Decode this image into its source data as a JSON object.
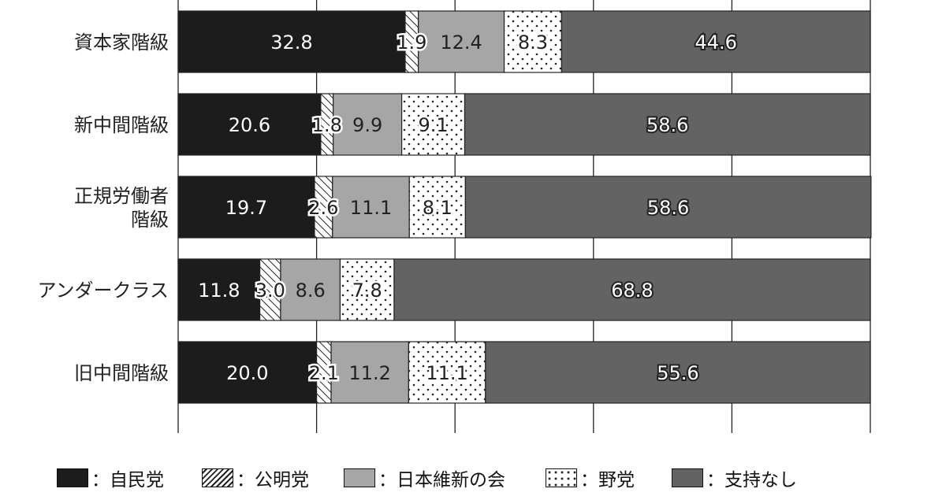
{
  "chart_data": {
    "type": "bar",
    "orientation": "horizontal",
    "stacked": true,
    "xlim": [
      0,
      100
    ],
    "grid": true,
    "legend_placement": "bottom",
    "categories": [
      "資本家階級",
      "新中間階級",
      "正規労働者階級",
      "アンダークラス",
      "旧中間階級"
    ],
    "category_lines": [
      [
        "資本家階級"
      ],
      [
        "新中間階級"
      ],
      [
        "正規労働者",
        "階級"
      ],
      [
        "アンダークラス"
      ],
      [
        "旧中間階級"
      ]
    ],
    "series": [
      {
        "name": "自民党",
        "values": [
          32.8,
          20.6,
          19.7,
          11.8,
          20.0
        ],
        "labels": [
          "32.8",
          "20.6",
          "19.7",
          "11.8",
          "20.0"
        ],
        "fill": "#1c1c1c",
        "pattern": "solid"
      },
      {
        "name": "公明党",
        "values": [
          1.9,
          1.8,
          2.6,
          3.0,
          2.1
        ],
        "labels": [
          "1.9",
          "1.8",
          "2.6",
          "3.0",
          "2.1"
        ],
        "fill": "#ffffff",
        "pattern": "hatch"
      },
      {
        "name": "日本維新の会",
        "values": [
          12.4,
          9.9,
          11.1,
          8.6,
          11.2
        ],
        "labels": [
          "12.4",
          "9.9",
          "11.1",
          "8.6",
          "11.2"
        ],
        "fill": "#a6a6a6",
        "pattern": "solid"
      },
      {
        "name": "野党",
        "values": [
          8.3,
          9.1,
          8.1,
          7.8,
          11.1
        ],
        "labels": [
          "8.3",
          "9.1",
          "8.1",
          "7.8",
          "11.1"
        ],
        "fill": "#ffffff",
        "pattern": "dots"
      },
      {
        "name": "支持なし",
        "values": [
          44.6,
          58.6,
          58.6,
          68.8,
          55.6
        ],
        "labels": [
          "44.6",
          "58.6",
          "58.6",
          "68.8",
          "55.6"
        ],
        "fill": "#636363",
        "pattern": "solid"
      }
    ]
  },
  "legend": {
    "items": [
      {
        "label": "：自民党",
        "pattern": "solid",
        "fill": "#1c1c1c"
      },
      {
        "label": "：公明党",
        "pattern": "hatch",
        "fill": "#ffffff"
      },
      {
        "label": "：日本維新の会",
        "pattern": "solid",
        "fill": "#a6a6a6"
      },
      {
        "label": "：野党",
        "pattern": "dots",
        "fill": "#ffffff"
      },
      {
        "label": "：支持なし",
        "pattern": "solid",
        "fill": "#636363"
      }
    ]
  },
  "colors": {
    "axis": "#222222",
    "grid": "#222222",
    "bar_stroke": "#222222",
    "label_light": "#ffffff",
    "label_dark": "#222222"
  }
}
